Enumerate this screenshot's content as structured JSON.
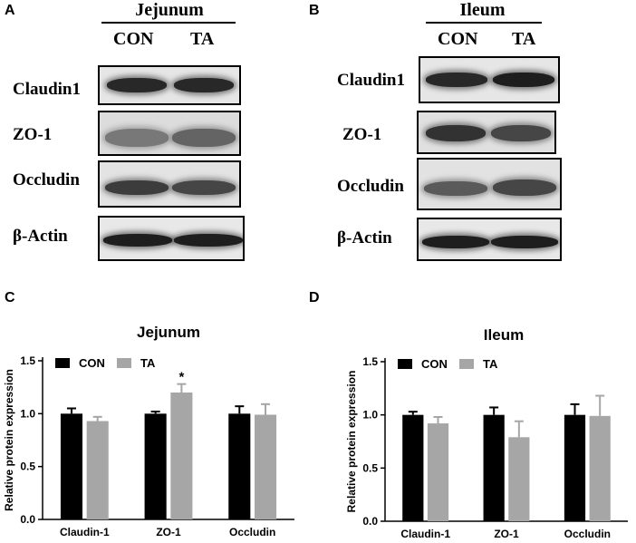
{
  "panels": {
    "A": "A",
    "B": "B",
    "C": "C",
    "D": "D"
  },
  "western_blots": [
    {
      "title": "Jejunum",
      "groups": [
        "CON",
        "TA"
      ],
      "rows": [
        {
          "label": "Claudin1",
          "intensity": [
            0.85,
            0.85
          ]
        },
        {
          "label": "ZO-1",
          "intensity": [
            0.45,
            0.55
          ]
        },
        {
          "label": "Occludin",
          "intensity": [
            0.75,
            0.7
          ]
        },
        {
          "label": "β-Actin",
          "intensity": [
            0.9,
            0.9
          ]
        }
      ]
    },
    {
      "title": "Ileum",
      "groups": [
        "CON",
        "TA"
      ],
      "rows": [
        {
          "label": "Claudin1",
          "intensity": [
            0.85,
            0.9
          ]
        },
        {
          "label": "ZO-1",
          "intensity": [
            0.8,
            0.7
          ]
        },
        {
          "label": "Occludin",
          "intensity": [
            0.6,
            0.7
          ]
        },
        {
          "label": "β-Actin",
          "intensity": [
            0.9,
            0.9
          ]
        }
      ]
    }
  ],
  "colors": {
    "con": "#000000",
    "ta": "#a6a6a6"
  },
  "chart_data": [
    {
      "type": "bar",
      "title": "Jejunum",
      "xlabel": "",
      "ylabel": "Relative protein expression",
      "ylim": [
        0,
        1.5
      ],
      "yticks": [
        "0.0",
        "0.5",
        "1.0",
        "1.5"
      ],
      "grid": false,
      "legend_position": "top-left",
      "categories": [
        "Claudin-1",
        "ZO-1",
        "Occludin"
      ],
      "series": [
        {
          "name": "CON",
          "values": [
            1.0,
            1.0,
            1.0
          ],
          "errors": [
            0.05,
            0.02,
            0.07
          ]
        },
        {
          "name": "TA",
          "values": [
            0.93,
            1.2,
            0.99
          ],
          "errors": [
            0.04,
            0.08,
            0.1
          ]
        }
      ],
      "annotations": [
        {
          "category": "ZO-1",
          "series": "TA",
          "text": "*"
        }
      ]
    },
    {
      "type": "bar",
      "title": "Ileum",
      "xlabel": "",
      "ylabel": "Relative protein expression",
      "ylim": [
        0,
        1.5
      ],
      "yticks": [
        "0.0",
        "0.5",
        "1.0",
        "1.5"
      ],
      "grid": false,
      "legend_position": "top-left",
      "categories": [
        "Claudin-1",
        "ZO-1",
        "Occludin"
      ],
      "series": [
        {
          "name": "CON",
          "values": [
            1.0,
            1.0,
            1.0
          ],
          "errors": [
            0.03,
            0.07,
            0.1
          ]
        },
        {
          "name": "TA",
          "values": [
            0.92,
            0.79,
            0.99
          ],
          "errors": [
            0.06,
            0.15,
            0.19
          ]
        }
      ],
      "annotations": []
    }
  ]
}
